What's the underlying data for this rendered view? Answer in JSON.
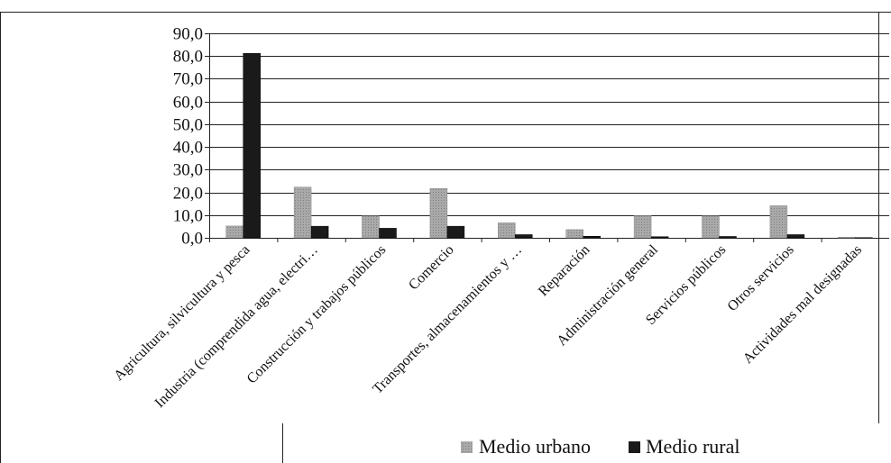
{
  "chart_data": {
    "type": "bar",
    "categories": [
      "Agricultura, silvicultura y pesca",
      "Industria (comprendida agua, electri…",
      "Construcción y trabajos públicos",
      "Comercio",
      "Transportes, almacenamientos y …",
      "Reparación",
      "Administración general",
      "Servicios públicos",
      "Otros servicios",
      "Actividades mal designadas"
    ],
    "series": [
      {
        "name": "Medio urbano",
        "color": "#9a9a9a",
        "values": [
          5.2,
          22.3,
          9.6,
          21.7,
          6.6,
          3.6,
          9.7,
          9.6,
          14.1,
          0.3
        ]
      },
      {
        "name": "Medio rural",
        "color": "#1a1a1a",
        "values": [
          81.2,
          5.1,
          4.2,
          5.1,
          1.4,
          0.7,
          0.5,
          0.6,
          1.4,
          0.1
        ]
      }
    ],
    "yticks": [
      "0,0",
      "10,0",
      "20,0",
      "30,0",
      "40,0",
      "50,0",
      "60,0",
      "70,0",
      "80,0",
      "90,0"
    ],
    "ylim": [
      0,
      90
    ],
    "grid": true,
    "legend_position": "bottom-right"
  }
}
